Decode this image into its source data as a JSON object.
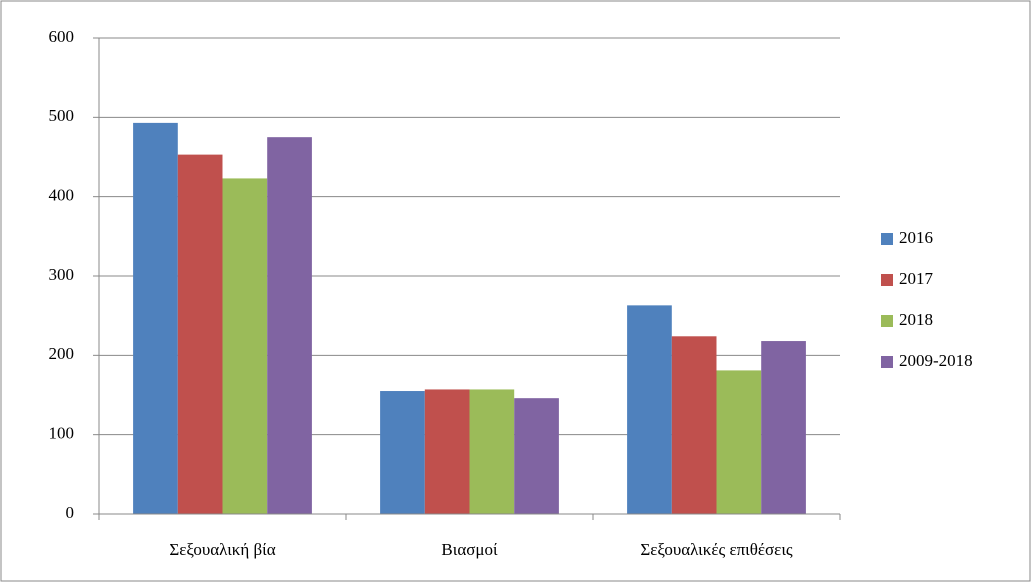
{
  "chart_data": {
    "type": "bar",
    "categories": [
      "Σεξουαλική βία",
      "Βιασμοί",
      "Σεξουαλικές επιθέσεις"
    ],
    "series": [
      {
        "name": "2016",
        "color": "#4f81bd",
        "values": [
          493,
          155,
          263
        ]
      },
      {
        "name": "2017",
        "color": "#c0504d",
        "values": [
          453,
          157,
          224
        ]
      },
      {
        "name": "2018",
        "color": "#9bbb59",
        "values": [
          423,
          157,
          181
        ]
      },
      {
        "name": "2009-2018",
        "color": "#8064a2",
        "values": [
          475,
          146,
          218
        ]
      }
    ],
    "ylim": [
      0,
      600
    ],
    "yticks": [
      0,
      100,
      200,
      300,
      400,
      500,
      600
    ],
    "grid": true,
    "legend": "right"
  }
}
